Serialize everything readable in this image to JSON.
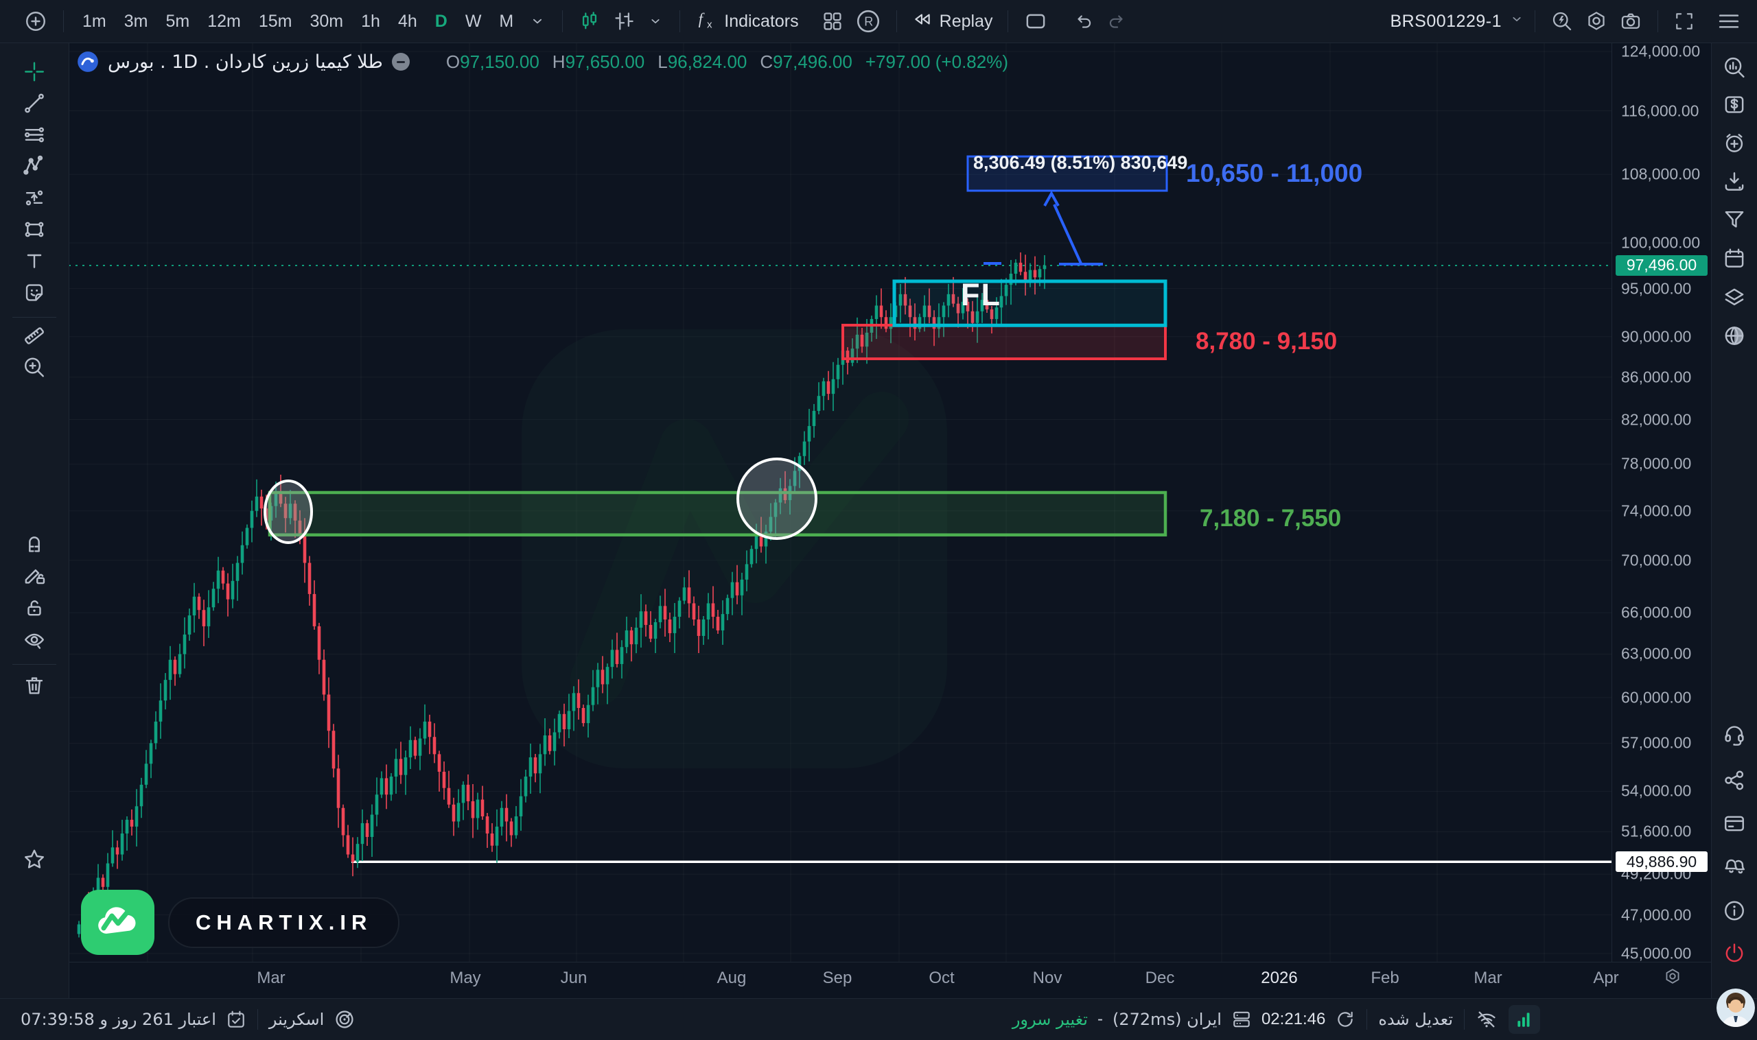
{
  "toolbar": {
    "timeframes": [
      "1m",
      "3m",
      "5m",
      "12m",
      "15m",
      "30m",
      "1h",
      "4h",
      "D",
      "W",
      "M"
    ],
    "active_timeframe": "D",
    "indicators_label": "Indicators",
    "replay_label": "Replay",
    "layout_button": "BRS001229-1",
    "icons_left": [
      "plus-circle",
      "candles-style",
      "bars-style",
      "chevron-down",
      "fx",
      "grid-layout",
      "r-badge",
      "rewind",
      "rect-outline",
      "undo",
      "redo"
    ],
    "icons_right": [
      "chevron-down",
      "bolt-search",
      "gear",
      "camera",
      "fullscreen",
      "hamburger"
    ]
  },
  "symbol_row": {
    "name": "طلا کیمیا زرین کاردان . 1D . بورس",
    "o_label": "O",
    "o": "97,150.00",
    "h_label": "H",
    "h": "97,650.00",
    "l_label": "L",
    "l": "96,824.00",
    "c_label": "C",
    "c": "97,496.00",
    "change": "+797.00 (+0.82%)"
  },
  "left_toolbar": {
    "tools": [
      {
        "name": "crosshair-tool",
        "icon": "crosshair",
        "color": "#17a97d"
      },
      {
        "name": "trend-line-tool",
        "icon": "trend"
      },
      {
        "name": "parallel-lines-tool",
        "icon": "parallel"
      },
      {
        "name": "pattern-tool",
        "icon": "xabcd"
      },
      {
        "name": "projection-tool",
        "icon": "projection"
      },
      {
        "name": "rectangle-tool",
        "icon": "rectpts"
      },
      {
        "name": "text-tool",
        "icon": "textT"
      },
      {
        "name": "sticker-tool",
        "icon": "sticker"
      },
      {
        "name": "ruler-tool",
        "icon": "ruler"
      },
      {
        "name": "zoom-in-tool",
        "icon": "zoomplus"
      },
      {
        "name": "magnet-tool",
        "icon": "magnet"
      },
      {
        "name": "drawing-mode-tool",
        "icon": "pencillock"
      },
      {
        "name": "lock-drawings-tool",
        "icon": "unlock"
      },
      {
        "name": "hide-drawings-tool",
        "icon": "eye"
      },
      {
        "name": "remove-drawings-tool",
        "icon": "trash"
      },
      {
        "name": "favorites-star",
        "icon": "star"
      }
    ]
  },
  "right_sidebar": {
    "items_top": [
      {
        "name": "watchlist-search-icon",
        "icon": "searchbars"
      },
      {
        "name": "price-dollar-icon",
        "icon": "dollarsq"
      },
      {
        "name": "alert-add-icon",
        "icon": "alarmplus"
      },
      {
        "name": "download-icon",
        "icon": "download"
      },
      {
        "name": "filter-icon",
        "icon": "funnel"
      },
      {
        "name": "calendar-icon",
        "icon": "calendar"
      },
      {
        "name": "layers-icon",
        "icon": "layers"
      },
      {
        "name": "globe-icon",
        "icon": "globe"
      }
    ],
    "items_bottom": [
      {
        "name": "support-headset-icon",
        "icon": "headset"
      },
      {
        "name": "share-icon",
        "icon": "share"
      },
      {
        "name": "payment-card-icon",
        "icon": "card"
      },
      {
        "name": "notifications-bells-icon",
        "icon": "bells"
      },
      {
        "name": "info-icon",
        "icon": "info"
      },
      {
        "name": "power-icon",
        "icon": "power",
        "color": "#e8374a"
      }
    ]
  },
  "status_bar": {
    "credit_text": "اعتبار 261 روز و 07:39:58",
    "screener_label": "اسکرینر",
    "change_server_label": "تغییر سرور",
    "dash": "-",
    "server_text": "ایران (272ms)",
    "clock": "02:21:46",
    "adjusted_label": "تعدیل شده"
  },
  "watermark_badge": {
    "text": "CHARTIX.IR"
  },
  "chart_data": {
    "type": "candlestick",
    "symbol": "BRS001229-1",
    "interval": "1D",
    "ohlc": {
      "open": 97150,
      "high": 97650,
      "low": 96824,
      "close": 97496,
      "change": 797,
      "change_pct": 0.82
    },
    "y_scale": {
      "type": "log",
      "price_top": 124000,
      "y_top": 75,
      "price_bottom": 45000,
      "y_bottom": 1390
    },
    "y_ticks": [
      {
        "label": "124,000.00",
        "price": 124000
      },
      {
        "label": "116,000.00",
        "price": 116000
      },
      {
        "label": "108,000.00",
        "price": 108000
      },
      {
        "label": "100,000.00",
        "price": 100000
      },
      {
        "label": "95,000.00",
        "price": 95000
      },
      {
        "label": "90,000.00",
        "price": 90000
      },
      {
        "label": "86,000.00",
        "price": 86000
      },
      {
        "label": "82,000.00",
        "price": 82000
      },
      {
        "label": "78,000.00",
        "price": 78000
      },
      {
        "label": "74,000.00",
        "price": 74000
      },
      {
        "label": "70,000.00",
        "price": 70000
      },
      {
        "label": "66,000.00",
        "price": 66000
      },
      {
        "label": "63,000.00",
        "price": 63000
      },
      {
        "label": "60,000.00",
        "price": 60000
      },
      {
        "label": "57,000.00",
        "price": 57000
      },
      {
        "label": "54,000.00",
        "price": 54000
      },
      {
        "label": "51,600.00",
        "price": 51600
      },
      {
        "label": "49,200.00",
        "price": 49200
      },
      {
        "label": "47,000.00",
        "price": 47000
      },
      {
        "label": "45,000.00",
        "price": 45000
      }
    ],
    "current_price": {
      "label": "97,496.00",
      "price": 97496
    },
    "low_marker": {
      "label": "49,886.90",
      "price": 49886.9,
      "x_start": 512
    },
    "x_labels": [
      {
        "text": "Mar",
        "x": 295
      },
      {
        "text": "May",
        "x": 578
      },
      {
        "text": "Jun",
        "x": 736
      },
      {
        "text": "Aug",
        "x": 966
      },
      {
        "text": "Sep",
        "x": 1120
      },
      {
        "text": "Oct",
        "x": 1272
      },
      {
        "text": "Nov",
        "x": 1426
      },
      {
        "text": "Dec",
        "x": 1590
      },
      {
        "text": "2026",
        "x": 1764,
        "bright": true
      },
      {
        "text": "Feb",
        "x": 1918
      },
      {
        "text": "Mar",
        "x": 2068
      },
      {
        "text": "Apr",
        "x": 2240
      }
    ],
    "candles": {
      "x_start": 115,
      "x_step": 7,
      "first_open": 46000,
      "closes": [
        46500,
        47300,
        46900,
        48100,
        49000,
        48500,
        49800,
        50700,
        50300,
        51500,
        52300,
        51900,
        53100,
        54400,
        55700,
        57000,
        58400,
        59800,
        61200,
        62600,
        61600,
        63000,
        64400,
        65800,
        67200,
        66200,
        65000,
        66400,
        67800,
        69200,
        68200,
        67000,
        68400,
        69800,
        71200,
        72600,
        74000,
        75200,
        74200,
        73200,
        74400,
        75600,
        74600,
        73400,
        74600,
        73200,
        72000,
        69800,
        67400,
        65000,
        62600,
        60200,
        57800,
        55400,
        53000,
        51400,
        50300,
        49887,
        50900,
        52100,
        51300,
        52600,
        53800,
        54800,
        53800,
        54900,
        56000,
        55000,
        56100,
        57200,
        56200,
        57300,
        58400,
        57400,
        56300,
        55200,
        54200,
        53200,
        52200,
        53300,
        54400,
        53400,
        52400,
        53500,
        52500,
        51500,
        50800,
        51900,
        53000,
        52200,
        51400,
        52500,
        53700,
        54900,
        56100,
        55100,
        56300,
        57500,
        56500,
        57700,
        58900,
        57900,
        59100,
        60300,
        59300,
        58300,
        59500,
        60700,
        61900,
        60900,
        62100,
        63300,
        62300,
        63500,
        64700,
        63700,
        64900,
        66100,
        65100,
        64100,
        65300,
        66500,
        65500,
        64500,
        65700,
        66900,
        67900,
        66700,
        65500,
        64300,
        65500,
        66700,
        65700,
        64700,
        65900,
        67100,
        68300,
        67300,
        68500,
        69700,
        70900,
        72100,
        71100,
        72300,
        73500,
        74700,
        75900,
        74900,
        76100,
        77400,
        78700,
        80000,
        81400,
        82800,
        84200,
        85600,
        84400,
        85800,
        87200,
        88600,
        87400,
        88800,
        90200,
        89000,
        90400,
        91800,
        93200,
        92000,
        90800,
        92000,
        93200,
        94400,
        93200,
        92000,
        90800,
        92000,
        93200,
        92000,
        90800,
        92000,
        93200,
        94400,
        93400,
        92400,
        93600,
        92600,
        91400,
        92600,
        93800,
        92800,
        91800,
        93000,
        94200,
        95400,
        96600,
        97800,
        96800,
        95800,
        97000,
        96200,
        97100,
        97496
      ]
    },
    "colors": {
      "up": "#0fa180",
      "down": "#ef4656",
      "blue": "#2962ff",
      "cyan": "#00bcd4",
      "red": "#f23645",
      "green": "#4caf50",
      "current_label_bg": "#0f9d7a"
    },
    "annotations": {
      "target_box": {
        "x1": 1410,
        "x2": 1700,
        "p_top": 110200,
        "p_bottom": 106040,
        "color": "#2962ff",
        "measure_label": "8,306.49 (8.51%) 830,649",
        "range_text": "10,650 - 11,000"
      },
      "fl_box": {
        "x1": 1303,
        "x2": 1698,
        "p_top": 95780,
        "p_bottom": 91150,
        "color": "#00bcd4",
        "label": "FL"
      },
      "supply_box": {
        "x1": 1228,
        "x2": 1698,
        "p_top": 91170,
        "p_bottom": 87790,
        "color": "#f23645",
        "range_text": "8,780 - 9,150"
      },
      "demand_box": {
        "x1": 393,
        "x2": 1698,
        "p_top": 75540,
        "p_bottom": 72030,
        "color": "#4caf50",
        "range_text": "7,180 - 7,550"
      },
      "ellipses": [
        {
          "cx": 420,
          "cy": 746,
          "rx": 34,
          "ry": 45
        },
        {
          "cx": 1132,
          "cy": 727,
          "rx": 57,
          "ry": 58
        }
      ],
      "measure_arrow": {
        "x_bottom": 1575,
        "x_top": 1532,
        "start_tick_x": 1446
      }
    }
  }
}
